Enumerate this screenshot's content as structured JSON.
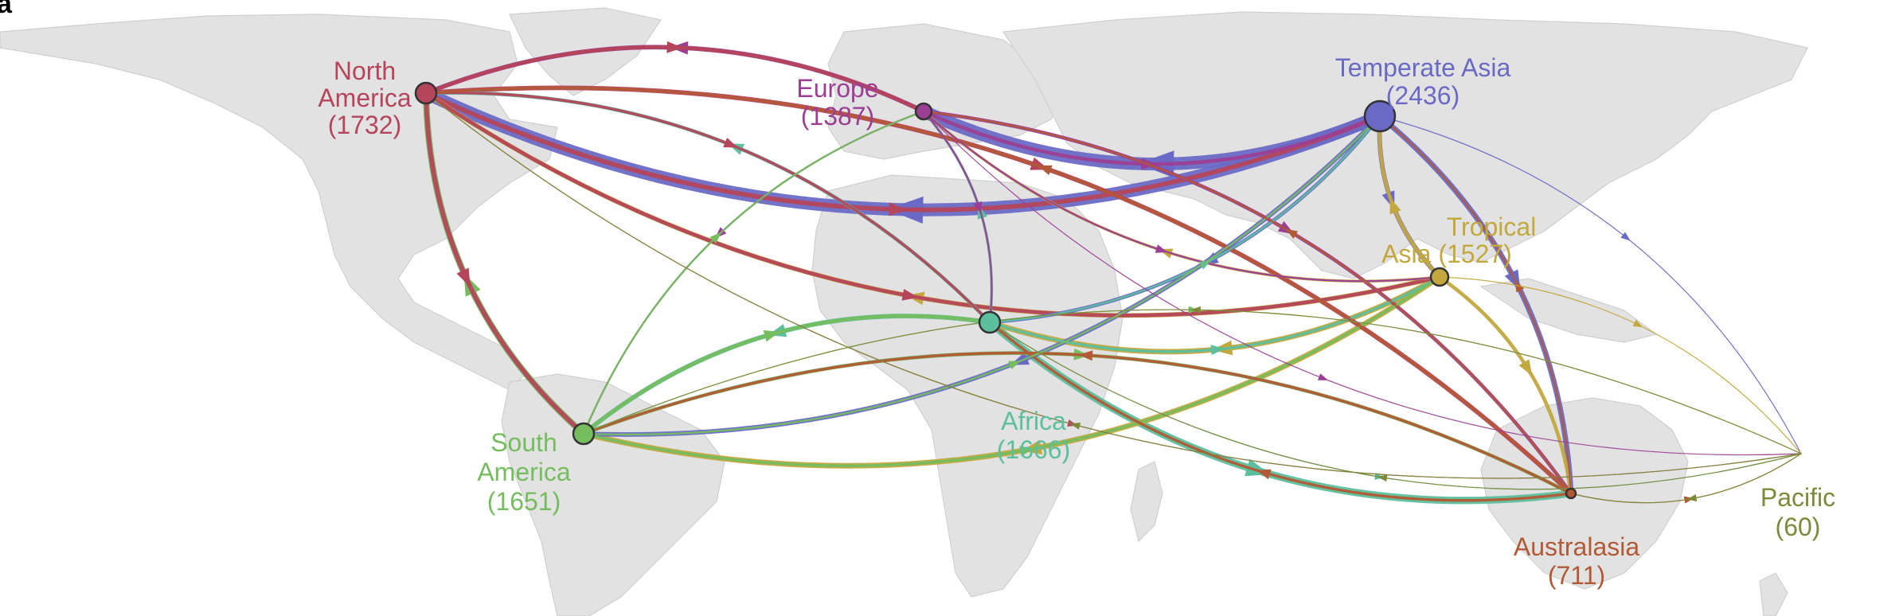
{
  "panel_label": "a",
  "colors": {
    "north_america": "#b5455b",
    "europe": "#9c3f94",
    "temperate_asia": "#6a6ac6",
    "tropical_asia": "#c3a83e",
    "africa": "#5cbf9d",
    "south_america": "#75bd5f",
    "australasia": "#b25a35",
    "pacific": "#7d8a3a",
    "land": "#e2e2e2"
  },
  "regions": [
    {
      "key": "north_america",
      "name_lines": [
        "North",
        "America"
      ],
      "count": "(1732)",
      "color": "#b5455b"
    },
    {
      "key": "europe",
      "name_lines": [
        "Europe"
      ],
      "count": "(1387)",
      "color": "#9c3f94"
    },
    {
      "key": "temperate_asia",
      "name_lines": [
        "Temperate Asia"
      ],
      "count": "(2436)",
      "color": "#6a6ac6"
    },
    {
      "key": "tropical_asia",
      "name_lines": [
        "Tropical",
        "Asia (1527)"
      ],
      "count": "",
      "color": "#c3a83e"
    },
    {
      "key": "africa",
      "name_lines": [
        "Africa"
      ],
      "count": "(1666)",
      "color": "#5cbf9d"
    },
    {
      "key": "south_america",
      "name_lines": [
        "South",
        "America"
      ],
      "count": "(1651)",
      "color": "#75bd5f"
    },
    {
      "key": "australasia",
      "name_lines": [
        "Australasia"
      ],
      "count": "(711)",
      "color": "#b25a35"
    },
    {
      "key": "pacific",
      "name_lines": [
        "Pacific"
      ],
      "count": "(60)",
      "color": "#7d8a3a"
    }
  ],
  "flows": [
    {
      "from": "north_america",
      "to": "temperate_asia",
      "weight": 5
    },
    {
      "from": "north_america",
      "to": "europe",
      "weight": 4
    },
    {
      "from": "north_america",
      "to": "tropical_asia",
      "weight": 4
    },
    {
      "from": "north_america",
      "to": "south_america",
      "weight": 5
    },
    {
      "from": "north_america",
      "to": "africa",
      "weight": 3
    },
    {
      "from": "north_america",
      "to": "australasia",
      "weight": 5
    },
    {
      "from": "north_america",
      "to": "pacific",
      "weight": 1
    },
    {
      "from": "europe",
      "to": "north_america",
      "weight": 5
    },
    {
      "from": "europe",
      "to": "temperate_asia",
      "weight": 4
    },
    {
      "from": "europe",
      "to": "africa",
      "weight": 2
    },
    {
      "from": "europe",
      "to": "south_america",
      "weight": 2
    },
    {
      "from": "europe",
      "to": "australasia",
      "weight": 4
    },
    {
      "from": "europe",
      "to": "tropical_asia",
      "weight": 2
    },
    {
      "from": "europe",
      "to": "pacific",
      "weight": 1
    },
    {
      "from": "temperate_asia",
      "to": "north_america",
      "weight": 14
    },
    {
      "from": "temperate_asia",
      "to": "europe",
      "weight": 14
    },
    {
      "from": "temperate_asia",
      "to": "africa",
      "weight": 4
    },
    {
      "from": "temperate_asia",
      "to": "south_america",
      "weight": 5
    },
    {
      "from": "temperate_asia",
      "to": "tropical_asia",
      "weight": 5
    },
    {
      "from": "temperate_asia",
      "to": "australasia",
      "weight": 6
    },
    {
      "from": "temperate_asia",
      "to": "pacific",
      "weight": 1
    },
    {
      "from": "tropical_asia",
      "to": "north_america",
      "weight": 5
    },
    {
      "from": "tropical_asia",
      "to": "africa",
      "weight": 6
    },
    {
      "from": "tropical_asia",
      "to": "south_america",
      "weight": 6
    },
    {
      "from": "tropical_asia",
      "to": "temperate_asia",
      "weight": 4
    },
    {
      "from": "tropical_asia",
      "to": "australasia",
      "weight": 4
    },
    {
      "from": "tropical_asia",
      "to": "europe",
      "weight": 3
    },
    {
      "from": "tropical_asia",
      "to": "pacific",
      "weight": 1
    },
    {
      "from": "africa",
      "to": "north_america",
      "weight": 4
    },
    {
      "from": "africa",
      "to": "europe",
      "weight": 3
    },
    {
      "from": "africa",
      "to": "south_america",
      "weight": 5
    },
    {
      "from": "africa",
      "to": "tropical_asia",
      "weight": 3
    },
    {
      "from": "africa",
      "to": "australasia",
      "weight": 8
    },
    {
      "from": "africa",
      "to": "temperate_asia",
      "weight": 2
    },
    {
      "from": "africa",
      "to": "pacific",
      "weight": 1
    },
    {
      "from": "south_america",
      "to": "north_america",
      "weight": 7
    },
    {
      "from": "south_america",
      "to": "europe",
      "weight": 2
    },
    {
      "from": "south_america",
      "to": "temperate_asia",
      "weight": 2
    },
    {
      "from": "south_america",
      "to": "africa",
      "weight": 4
    },
    {
      "from": "south_america",
      "to": "tropical_asia",
      "weight": 3
    },
    {
      "from": "south_america",
      "to": "australasia",
      "weight": 4
    },
    {
      "from": "south_america",
      "to": "pacific",
      "weight": 1
    },
    {
      "from": "australasia",
      "to": "north_america",
      "weight": 3
    },
    {
      "from": "australasia",
      "to": "south_america",
      "weight": 3
    },
    {
      "from": "australasia",
      "to": "africa",
      "weight": 3
    },
    {
      "from": "australasia",
      "to": "europe",
      "weight": 2
    },
    {
      "from": "australasia",
      "to": "temperate_asia",
      "weight": 2
    },
    {
      "from": "australasia",
      "to": "pacific",
      "weight": 1
    },
    {
      "from": "pacific",
      "to": "south_america",
      "weight": 1
    },
    {
      "from": "pacific",
      "to": "africa",
      "weight": 1
    },
    {
      "from": "pacific",
      "to": "north_america",
      "weight": 1
    },
    {
      "from": "pacific",
      "to": "australasia",
      "weight": 1
    }
  ]
}
